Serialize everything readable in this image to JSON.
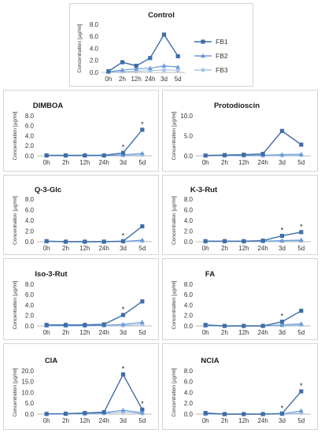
{
  "chart_data": [
    {
      "type": "line",
      "title": "Control",
      "ylabel": "Concentration [µg/ml]",
      "categories": [
        "0h",
        "2h",
        "12h",
        "24h",
        "3d",
        "5d"
      ],
      "ylim": [
        0,
        8
      ],
      "yticks": [
        "0.0",
        "2.0",
        "4.0",
        "6.0",
        "8.0"
      ],
      "series": [
        {
          "name": "FB1",
          "values": [
            0.2,
            1.7,
            1.1,
            2.4,
            6.3,
            2.7
          ]
        },
        {
          "name": "FB2",
          "values": [
            0.1,
            0.4,
            0.6,
            0.7,
            1.1,
            0.9
          ]
        },
        {
          "name": "FB3",
          "values": [
            0.05,
            0.15,
            0.2,
            0.3,
            0.4,
            0.35
          ]
        }
      ],
      "legend": "right",
      "stars": []
    },
    {
      "type": "line",
      "title": "DIMBOA",
      "ylabel": "Concentration [µg/ml]",
      "categories": [
        "0h",
        "2h",
        "12h",
        "24h",
        "3d",
        "5d"
      ],
      "ylim": [
        0,
        8
      ],
      "yticks": [
        "0.0",
        "2.0",
        "4.0",
        "6.0",
        "8.0"
      ],
      "series": [
        {
          "values": [
            0.1,
            0.1,
            0.1,
            0.1,
            0.6,
            5.2
          ]
        },
        {
          "values": [
            0.05,
            0.05,
            0.05,
            0.05,
            0.2,
            0.5
          ]
        },
        {
          "values": [
            0.02,
            0.02,
            0.02,
            0.02,
            0.1,
            0.2
          ]
        }
      ],
      "stars": [
        "3d",
        "5d"
      ]
    },
    {
      "type": "line",
      "title": "Protodioscin",
      "ylabel": "Concentration [µg/ml]",
      "categories": [
        "0h",
        "2h",
        "12h",
        "24h",
        "3d",
        "5d"
      ],
      "ylim": [
        0,
        10
      ],
      "yticks": [
        "0.0",
        "5.0",
        "10.0"
      ],
      "series": [
        {
          "values": [
            0.1,
            0.2,
            0.3,
            0.5,
            6.2,
            2.8
          ]
        },
        {
          "values": [
            0.05,
            0.1,
            0.1,
            0.15,
            0.3,
            0.4
          ]
        },
        {
          "values": [
            0.02,
            0.05,
            0.05,
            0.05,
            0.1,
            0.15
          ]
        }
      ],
      "stars": []
    },
    {
      "type": "line",
      "title": "Q-3-Glc",
      "ylabel": "Concentration [µg/ml]",
      "categories": [
        "0h",
        "2h",
        "12h",
        "24h",
        "3d",
        "5d"
      ],
      "ylim": [
        0,
        8
      ],
      "yticks": [
        "0.0",
        "2.0",
        "4.0",
        "6.0",
        "8.0"
      ],
      "series": [
        {
          "values": [
            0.1,
            0.0,
            0.0,
            0.0,
            0.1,
            2.9
          ]
        },
        {
          "values": [
            0.05,
            0.0,
            0.0,
            0.0,
            0.05,
            0.3
          ]
        },
        {
          "values": [
            0.02,
            0.0,
            0.0,
            0.0,
            0.02,
            0.1
          ]
        }
      ],
      "stars": [
        "3d"
      ]
    },
    {
      "type": "line",
      "title": "K-3-Rut",
      "ylabel": "Concentration [µg/ml]",
      "categories": [
        "0h",
        "2h",
        "12h",
        "24h",
        "3d",
        "5d"
      ],
      "ylim": [
        0,
        8
      ],
      "yticks": [
        "0.0",
        "2.0",
        "4.0",
        "6.0",
        "8.0"
      ],
      "series": [
        {
          "values": [
            0.1,
            0.1,
            0.1,
            0.2,
            1.1,
            1.8
          ]
        },
        {
          "values": [
            0.05,
            0.05,
            0.05,
            0.1,
            0.2,
            0.3
          ]
        },
        {
          "values": [
            0.02,
            0.02,
            0.02,
            0.05,
            0.1,
            0.15
          ]
        }
      ],
      "stars": [
        "3d",
        "5d"
      ]
    },
    {
      "type": "line",
      "title": "Iso-3-Rut",
      "ylabel": "Concentration [µg/ml]",
      "categories": [
        "0h",
        "2h",
        "12h",
        "24h",
        "3d",
        "5d"
      ],
      "ylim": [
        0,
        8
      ],
      "yticks": [
        "0.0",
        "2.0",
        "4.0",
        "6.0",
        "8.0"
      ],
      "series": [
        {
          "values": [
            0.2,
            0.2,
            0.2,
            0.3,
            2.1,
            4.7
          ]
        },
        {
          "values": [
            0.05,
            0.05,
            0.05,
            0.1,
            0.3,
            0.7
          ]
        },
        {
          "values": [
            0.02,
            0.02,
            0.02,
            0.05,
            0.1,
            0.3
          ]
        }
      ],
      "stars": [
        "3d"
      ]
    },
    {
      "type": "line",
      "title": "FA",
      "ylabel": "Concentration [µg/ml]",
      "categories": [
        "0h",
        "2h",
        "12h",
        "24h",
        "3d",
        "5d"
      ],
      "ylim": [
        0,
        8
      ],
      "yticks": [
        "0.0",
        "2.0",
        "4.0",
        "6.0",
        "8.0"
      ],
      "series": [
        {
          "values": [
            0.2,
            0.0,
            0.0,
            0.0,
            0.8,
            2.9
          ]
        },
        {
          "values": [
            0.05,
            0.0,
            0.0,
            0.0,
            0.2,
            0.4
          ]
        },
        {
          "values": [
            0.02,
            0.0,
            0.0,
            0.0,
            0.1,
            0.2
          ]
        }
      ],
      "stars": [
        "3d"
      ]
    },
    {
      "type": "line",
      "title": "ClA",
      "ylabel": "Concentration [µg/ml]",
      "categories": [
        "0h",
        "2h",
        "12h",
        "24h",
        "3d",
        "5d"
      ],
      "ylim": [
        0,
        20
      ],
      "yticks": [
        "0.0",
        "5.0",
        "10.0",
        "15.0",
        "20.0"
      ],
      "series": [
        {
          "values": [
            0.1,
            0.2,
            0.5,
            0.9,
            18.3,
            2.1
          ]
        },
        {
          "values": [
            0.05,
            0.1,
            0.3,
            0.6,
            1.8,
            0.6
          ]
        },
        {
          "values": [
            0.02,
            0.05,
            0.1,
            0.3,
            1.0,
            0.3
          ]
        }
      ],
      "stars": [
        "3d",
        "5d"
      ]
    },
    {
      "type": "line",
      "title": "NClA",
      "ylabel": "Concentration [µg/ml]",
      "categories": [
        "0h",
        "2h",
        "12h",
        "24h",
        "3d",
        "5d"
      ],
      "ylim": [
        0,
        8
      ],
      "yticks": [
        "0.0",
        "2.0",
        "4.0",
        "6.0",
        "8.0"
      ],
      "series": [
        {
          "values": [
            0.2,
            0.0,
            0.0,
            0.0,
            0.1,
            4.2
          ]
        },
        {
          "values": [
            0.05,
            0.0,
            0.0,
            0.0,
            0.05,
            0.6
          ]
        },
        {
          "values": [
            0.02,
            0.0,
            0.0,
            0.0,
            0.02,
            0.2
          ]
        }
      ],
      "stars": [
        "3d",
        "5d"
      ]
    }
  ],
  "colors": {
    "FB1": "#3f6ea8",
    "FB2": "#6b9ad6",
    "FB3": "#a9c6e8",
    "axis": "#b8b8b8"
  }
}
